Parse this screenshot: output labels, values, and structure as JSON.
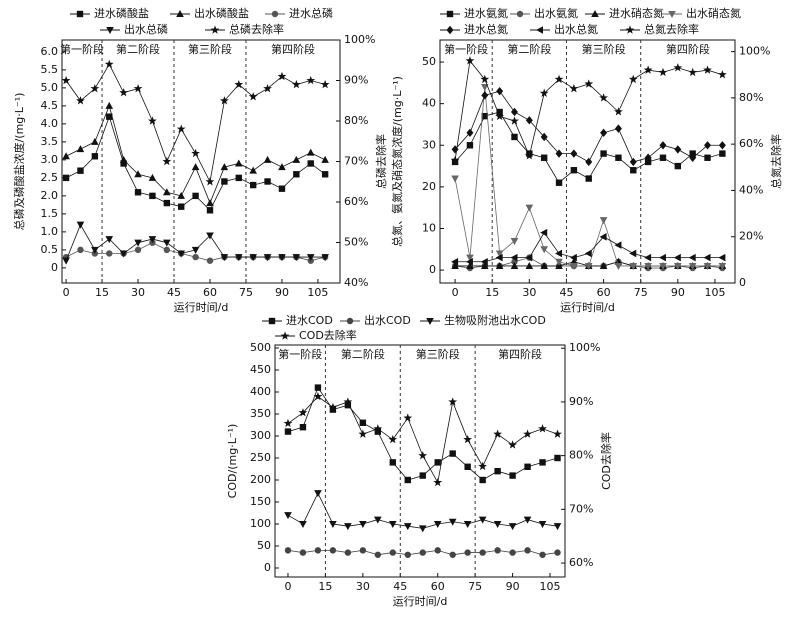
{
  "chart_data": [
    {
      "type": "line",
      "x_label": "运行时间/d",
      "y_label": "总磷及磷酸盐浓度/(mg·L⁻¹)",
      "y2_label": "总磷去除率",
      "phases": [
        "第一阶段",
        "第二阶段",
        "第三阶段",
        "第四阶段"
      ],
      "phase_lines": [
        15,
        45,
        75
      ],
      "x": [
        0,
        6,
        12,
        18,
        24,
        30,
        36,
        42,
        48,
        54,
        60,
        66,
        72,
        78,
        84,
        90,
        96,
        102,
        108
      ],
      "xlim": [
        -1.7,
        114.2
      ],
      "xticks": [
        0,
        15,
        30,
        45,
        60,
        75,
        90,
        105
      ],
      "ylim": [
        -0.42,
        6.33
      ],
      "yticks": [
        0,
        0.5,
        {
          "value": 1,
          "label": "1.0"
        },
        1.5,
        {
          "value": 2,
          "label": "2.0"
        },
        2.5,
        {
          "value": 3,
          "label": "3.0"
        },
        3.5,
        {
          "value": 4,
          "label": "4.0"
        },
        4.5,
        {
          "value": 5,
          "label": "5.0"
        },
        5.5,
        {
          "value": 6,
          "label": "6.0"
        }
      ],
      "y2lim": [
        40,
        100
      ],
      "y2ticks": [
        {
          "value": 40,
          "label": "40%"
        },
        {
          "value": 50,
          "label": "50%"
        },
        {
          "value": 60,
          "label": "60%"
        },
        {
          "value": 70,
          "label": "70%"
        },
        {
          "value": 80,
          "label": "80%"
        },
        {
          "value": 90,
          "label": "90%"
        },
        {
          "value": 100,
          "label": "100%"
        }
      ],
      "series": [
        {
          "name": "进水磷酸盐",
          "color": "#111111",
          "marker": "square",
          "values": [
            2.5,
            2.7,
            3.1,
            4.2,
            2.9,
            2.1,
            2.0,
            1.8,
            1.7,
            2.0,
            1.6,
            2.4,
            2.5,
            2.3,
            2.4,
            2.2,
            2.6,
            2.9,
            2.6
          ]
        },
        {
          "name": "出水磷酸盐",
          "color": "#111111",
          "marker": "triangle",
          "values": [
            3.1,
            3.3,
            3.5,
            4.5,
            3.0,
            2.6,
            2.5,
            2.1,
            2.0,
            2.8,
            1.8,
            2.8,
            2.9,
            2.7,
            3.0,
            2.8,
            3.0,
            3.2,
            3.0
          ]
        },
        {
          "name": "进水总磷",
          "color": "#555555",
          "marker": "circle",
          "values": [
            0.3,
            0.5,
            0.4,
            0.4,
            0.4,
            0.5,
            0.7,
            0.5,
            0.4,
            0.3,
            0.2,
            0.3,
            0.3,
            0.3,
            0.3,
            0.3,
            0.3,
            0.2,
            0.3
          ]
        },
        {
          "name": "出水总磷",
          "color": "#111111",
          "marker": "down",
          "values": [
            0.2,
            1.2,
            0.5,
            0.8,
            0.4,
            0.7,
            0.8,
            0.7,
            0.4,
            0.5,
            0.9,
            0.3,
            0.3,
            0.3,
            0.3,
            0.3,
            0.3,
            0.3,
            0.3
          ]
        },
        {
          "name": "总磷去除率",
          "color": "#111111",
          "marker": "star",
          "axis": "y2",
          "values": [
            90,
            85,
            88,
            94,
            87,
            88,
            80,
            70,
            78,
            72,
            65,
            85,
            89,
            86,
            88,
            91,
            89,
            90,
            89
          ]
        }
      ]
    },
    {
      "type": "line",
      "x_label": "运行时间/d",
      "y_label": "总氮、氨氮及硝态氮浓度/(mg·L⁻¹)",
      "y2_label": "总氮去除率",
      "phases": [
        "第一阶段",
        "第二阶段",
        "第三阶段",
        "第四阶段"
      ],
      "phase_lines": [
        15,
        45,
        75
      ],
      "x": [
        0,
        6,
        12,
        18,
        24,
        30,
        36,
        42,
        48,
        54,
        60,
        66,
        72,
        78,
        84,
        90,
        96,
        102,
        108
      ],
      "xlim": [
        -6.1,
        113.1
      ],
      "xticks": [
        0,
        15,
        30,
        45,
        60,
        75,
        90,
        105
      ],
      "ylim": [
        -3.1,
        55.3
      ],
      "yticks": [
        0,
        10,
        20,
        30,
        40,
        50
      ],
      "y2lim": [
        0,
        105
      ],
      "y2ticks": [
        {
          "value": 0,
          "label": "0"
        },
        {
          "value": 20,
          "label": "20%"
        },
        {
          "value": 40,
          "label": "40%"
        },
        {
          "value": 60,
          "label": "60%"
        },
        {
          "value": 80,
          "label": "80%"
        },
        {
          "value": 100,
          "label": "100%"
        }
      ],
      "series": [
        {
          "name": "进水氨氮",
          "color": "#111111",
          "marker": "square",
          "values": [
            26,
            30,
            37,
            38,
            32,
            28,
            27,
            21,
            24,
            22,
            28,
            27,
            24,
            26,
            27,
            25,
            28,
            27,
            28
          ]
        },
        {
          "name": "出水氨氮",
          "color": "#555555",
          "marker": "circle",
          "values": [
            1,
            0.5,
            1,
            1,
            2,
            3,
            1,
            1,
            1,
            1,
            1,
            2,
            1,
            0.5,
            0.5,
            1,
            0.5,
            1,
            0.5
          ]
        },
        {
          "name": "进水硝态氮",
          "color": "#111111",
          "marker": "triangle",
          "values": [
            1,
            1,
            1,
            1,
            1,
            1,
            1,
            1,
            2,
            1,
            1,
            2,
            1,
            1,
            1,
            1,
            1,
            1,
            1
          ]
        },
        {
          "name": "出水硝态氮",
          "color": "#666666",
          "marker": "down",
          "values": [
            22,
            3,
            44,
            4,
            7,
            15,
            5,
            2,
            1,
            1,
            12,
            1,
            1,
            1,
            1,
            1,
            1,
            1,
            1
          ]
        },
        {
          "name": "进水总氮",
          "color": "#111111",
          "marker": "diamond",
          "values": [
            29,
            33,
            42,
            43,
            38,
            36,
            32,
            28,
            28,
            26,
            33,
            34,
            26,
            27,
            30,
            29,
            27,
            30,
            30
          ]
        },
        {
          "name": "出水总氮",
          "color": "#111111",
          "marker": "left",
          "values": [
            2,
            2,
            2,
            3,
            3,
            3,
            9,
            4,
            3,
            4,
            8,
            6,
            4,
            3,
            3,
            3,
            3,
            3,
            3
          ]
        },
        {
          "name": "总氮去除率",
          "color": "#111111",
          "marker": "star",
          "axis": "y2",
          "values": [
            53,
            96,
            88,
            72,
            70,
            55,
            82,
            88,
            84,
            86,
            80,
            74,
            88,
            92,
            91,
            93,
            91,
            92,
            90
          ]
        }
      ]
    },
    {
      "type": "line",
      "x_label": "运行时间/d",
      "y_label": "COD/(mg·L⁻¹)",
      "y2_label": "COD去除率",
      "phases": [
        "第一阶段",
        "第二阶段",
        "第三阶段",
        "第四阶段"
      ],
      "phase_lines": [
        15,
        45,
        75
      ],
      "x": [
        0,
        6,
        12,
        18,
        24,
        30,
        36,
        42,
        48,
        54,
        60,
        66,
        72,
        78,
        84,
        90,
        96,
        102,
        108
      ],
      "xlim": [
        -5.2,
        111
      ],
      "xticks": [
        0,
        15,
        30,
        45,
        60,
        75,
        90,
        105
      ],
      "ylim": [
        -20.5,
        506.8
      ],
      "yticks": [
        0,
        50,
        100,
        150,
        200,
        250,
        300,
        350,
        400,
        450,
        500
      ],
      "y2lim": [
        57.4,
        100.6
      ],
      "y2ticks": [
        {
          "value": 60,
          "label": "60%"
        },
        {
          "value": 70,
          "label": "70%"
        },
        {
          "value": 80,
          "label": "80%"
        },
        {
          "value": 90,
          "label": "90%"
        },
        {
          "value": 100,
          "label": "100%"
        }
      ],
      "series": [
        {
          "name": "进水COD",
          "color": "#111111",
          "marker": "square",
          "values": [
            310,
            320,
            410,
            360,
            370,
            330,
            310,
            240,
            200,
            210,
            240,
            260,
            230,
            200,
            220,
            210,
            230,
            240,
            250
          ]
        },
        {
          "name": "出水COD",
          "color": "#444444",
          "marker": "circle",
          "values": [
            40,
            35,
            40,
            40,
            35,
            40,
            30,
            35,
            30,
            35,
            40,
            30,
            35,
            35,
            40,
            35,
            40,
            30,
            35
          ]
        },
        {
          "name": "生物吸附池出水COD",
          "color": "#111111",
          "marker": "down",
          "values": [
            120,
            100,
            170,
            100,
            95,
            100,
            110,
            100,
            95,
            90,
            100,
            105,
            100,
            110,
            100,
            95,
            110,
            100,
            95
          ]
        },
        {
          "name": "COD去除率",
          "color": "#111111",
          "marker": "star",
          "axis": "y2",
          "values": [
            86,
            88,
            91,
            89,
            90,
            84,
            85,
            83,
            87,
            80,
            75,
            90,
            83,
            78,
            84,
            82,
            84,
            85,
            84
          ]
        }
      ]
    }
  ]
}
